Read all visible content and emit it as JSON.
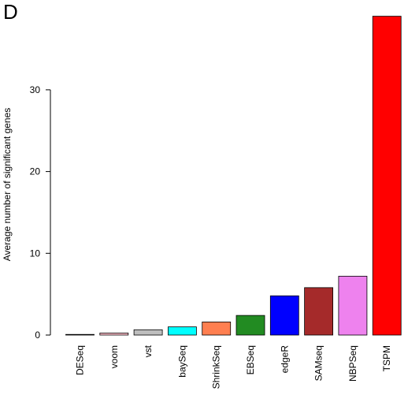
{
  "panel_label": "D",
  "chart_data": {
    "type": "bar",
    "title": "",
    "xlabel": "",
    "ylabel": "Average number of significant genes",
    "ylim": [
      0,
      39.6
    ],
    "yticks": [
      0,
      10,
      20,
      30
    ],
    "grid": false,
    "legend": "none",
    "categories": [
      "DESeq",
      "voom",
      "vst",
      "baySeq",
      "ShrinkSeq",
      "EBSeq",
      "edgeR",
      "SAMseq",
      "NBPSeq",
      "TSPM"
    ],
    "values": [
      0.05,
      0.25,
      0.65,
      1.0,
      1.6,
      2.4,
      4.8,
      5.8,
      7.2,
      39.0
    ],
    "colors": [
      "#000000",
      "#ffc0cb",
      "#bebebe",
      "#00ffff",
      "#ff7f50",
      "#228b22",
      "#0000ff",
      "#a52a2a",
      "#ee82ee",
      "#ff0000"
    ]
  }
}
